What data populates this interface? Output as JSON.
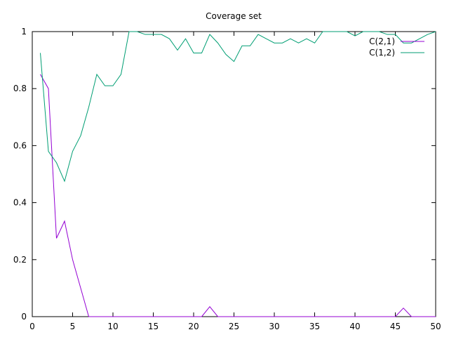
{
  "chart_data": {
    "type": "line",
    "title": "Coverage set",
    "xlabel": "",
    "ylabel": "",
    "xlim": [
      0,
      50
    ],
    "ylim": [
      0,
      1
    ],
    "x_ticks": [
      0,
      5,
      10,
      15,
      20,
      25,
      30,
      35,
      40,
      45,
      50
    ],
    "y_ticks": [
      0,
      0.2,
      0.4,
      0.6,
      0.8,
      1
    ],
    "y_tick_labels": [
      "0",
      "0.2",
      "0.4",
      "0.6",
      "0.8",
      "1"
    ],
    "x_tick_labels": [
      "0",
      "5",
      "10",
      "15",
      "20",
      "25",
      "30",
      "35",
      "40",
      "45",
      "50"
    ],
    "grid": false,
    "legend_position": "top-right",
    "x": [
      1,
      2,
      3,
      4,
      5,
      6,
      7,
      8,
      9,
      10,
      11,
      12,
      13,
      14,
      15,
      16,
      17,
      18,
      19,
      20,
      21,
      22,
      23,
      24,
      25,
      26,
      27,
      28,
      29,
      30,
      31,
      32,
      33,
      34,
      35,
      36,
      37,
      38,
      39,
      40,
      41,
      42,
      43,
      44,
      45,
      46,
      47,
      48,
      49,
      50
    ],
    "series": [
      {
        "name": "C(2,1)",
        "color": "#9400d3",
        "values": [
          0.85,
          0.8,
          0.275,
          0.335,
          0.2,
          0.1,
          0,
          0,
          0,
          0,
          0,
          0,
          0,
          0,
          0,
          0,
          0,
          0,
          0,
          0,
          0,
          0.035,
          0,
          0,
          0,
          0,
          0,
          0,
          0,
          0,
          0,
          0,
          0,
          0,
          0,
          0,
          0,
          0,
          0,
          0,
          0,
          0,
          0,
          0,
          0,
          0.03,
          0,
          0,
          0,
          0
        ]
      },
      {
        "name": "C(1,2)",
        "color": "#009e73",
        "values": [
          0.925,
          0.58,
          0.54,
          0.475,
          0.58,
          0.635,
          0.735,
          0.85,
          0.81,
          0.81,
          0.85,
          1.0,
          1.0,
          0.99,
          0.99,
          0.99,
          0.975,
          0.935,
          0.975,
          0.925,
          0.925,
          0.99,
          0.96,
          0.92,
          0.895,
          0.95,
          0.95,
          0.99,
          0.975,
          0.96,
          0.96,
          0.975,
          0.96,
          0.975,
          0.96,
          1.0,
          1.0,
          1.0,
          1.0,
          0.985,
          1.0,
          1.0,
          1.0,
          0.99,
          0.99,
          0.96,
          0.96,
          0.975,
          0.99,
          1.0
        ]
      }
    ]
  }
}
